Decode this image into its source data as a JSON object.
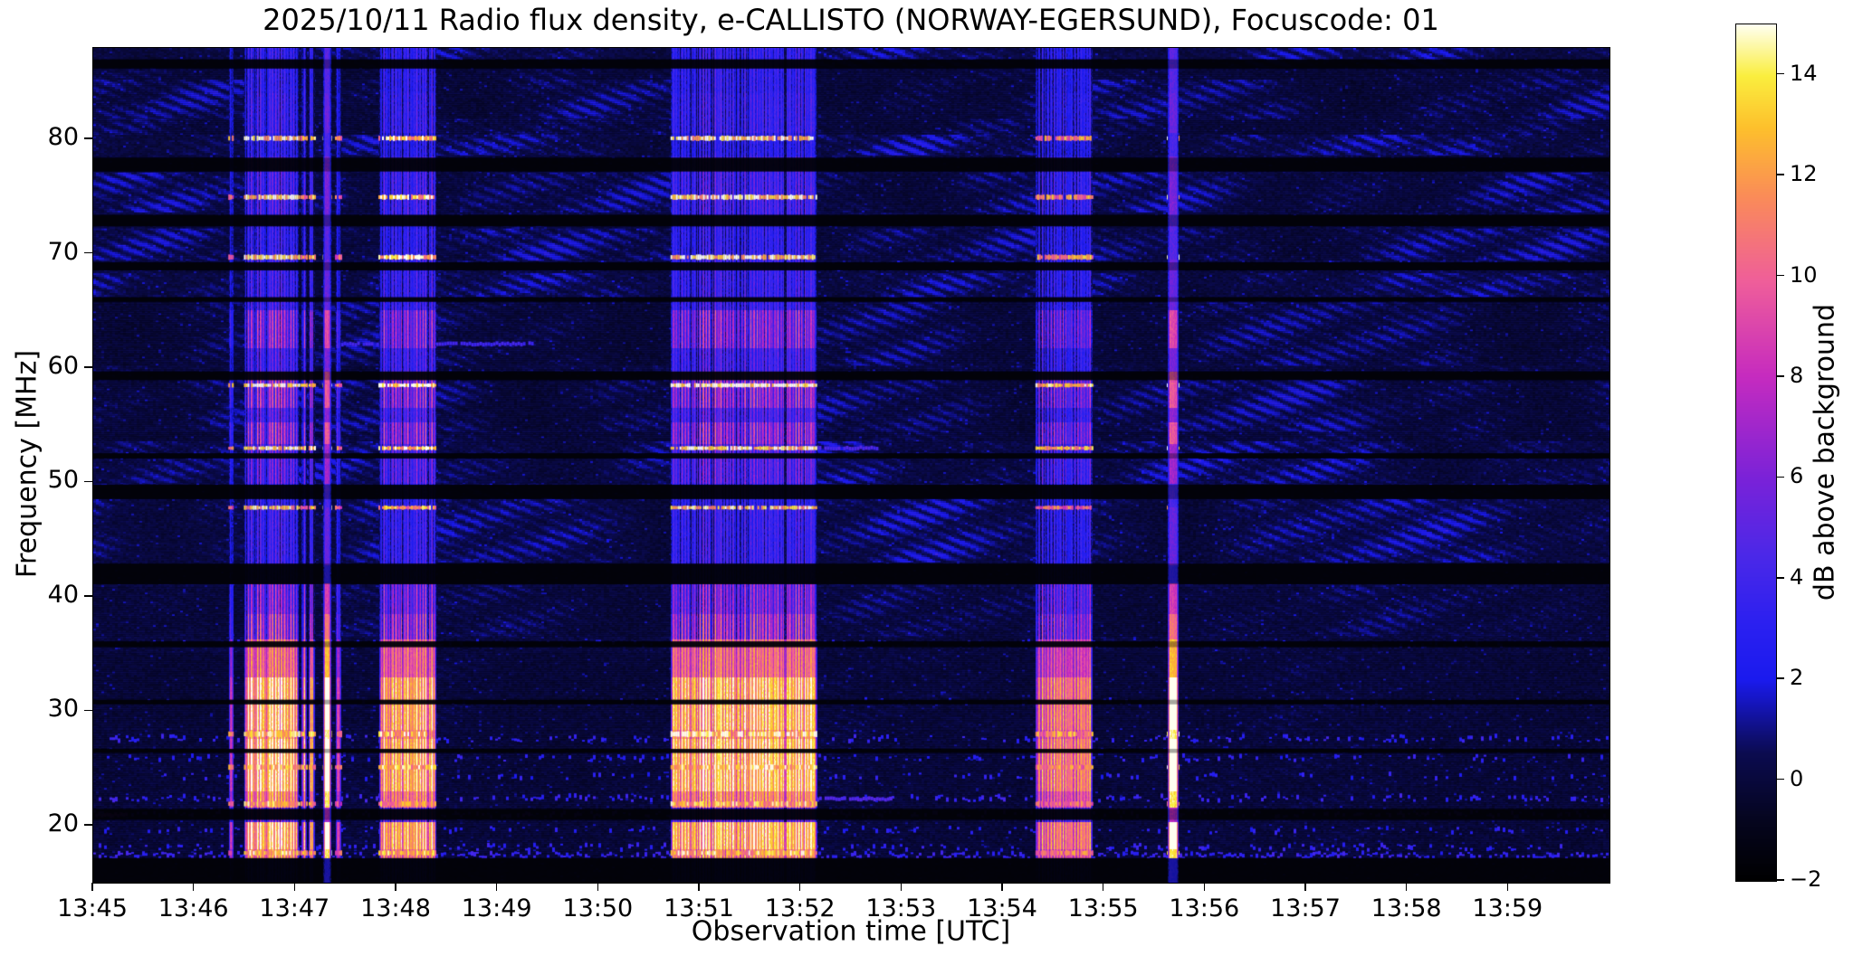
{
  "title": "2025/10/11  Radio flux density, e-CALLISTO (NORWAY-EGERSUND), Focuscode: 01",
  "chart_data": {
    "type": "heatmap",
    "subtype": "radio-spectrogram",
    "title": "2025/10/11  Radio flux density, e-CALLISTO (NORWAY-EGERSUND), Focuscode: 01",
    "xlabel": "Observation time [UTC]",
    "ylabel": "Frequency [MHz]",
    "colorbar_label": "dB above background",
    "x_start_utc": "13:45",
    "x_end_utc": "14:00",
    "x_range_minutes": [
      0,
      15
    ],
    "freq_range_mhz": [
      15,
      88
    ],
    "x_ticks": [
      {
        "label": "13:45",
        "minute": 0
      },
      {
        "label": "13:46",
        "minute": 1
      },
      {
        "label": "13:47",
        "minute": 2
      },
      {
        "label": "13:48",
        "minute": 3
      },
      {
        "label": "13:49",
        "minute": 4
      },
      {
        "label": "13:50",
        "minute": 5
      },
      {
        "label": "13:51",
        "minute": 6
      },
      {
        "label": "13:52",
        "minute": 7
      },
      {
        "label": "13:53",
        "minute": 8
      },
      {
        "label": "13:54",
        "minute": 9
      },
      {
        "label": "13:55",
        "minute": 10
      },
      {
        "label": "13:56",
        "minute": 11
      },
      {
        "label": "13:57",
        "minute": 12
      },
      {
        "label": "13:58",
        "minute": 13
      },
      {
        "label": "13:59",
        "minute": 14
      }
    ],
    "y_ticks": [
      {
        "label": "80",
        "value": 80
      },
      {
        "label": "70",
        "value": 70
      },
      {
        "label": "60",
        "value": 60
      },
      {
        "label": "50",
        "value": 50
      },
      {
        "label": "40",
        "value": 40
      },
      {
        "label": "30",
        "value": 30
      },
      {
        "label": "20",
        "value": 20
      }
    ],
    "colorbar": {
      "vmin": -2,
      "vmax": 15,
      "ticks": [
        {
          "label": "14",
          "value": 14
        },
        {
          "label": "12",
          "value": 12
        },
        {
          "label": "10",
          "value": 10
        },
        {
          "label": "8",
          "value": 8
        },
        {
          "label": "6",
          "value": 6
        },
        {
          "label": "4",
          "value": 4
        },
        {
          "label": "2",
          "value": 2
        },
        {
          "label": "0",
          "value": 0
        },
        {
          "label": "−2",
          "value": -2
        }
      ],
      "anchors": [
        {
          "t": 0.0,
          "c": [
            0,
            0,
            0
          ]
        },
        {
          "t": 0.07,
          "c": [
            5,
            5,
            30
          ]
        },
        {
          "t": 0.15,
          "c": [
            11,
            11,
            80
          ]
        },
        {
          "t": 0.235,
          "c": [
            26,
            26,
            238
          ]
        },
        {
          "t": 0.3,
          "c": [
            43,
            32,
            240
          ]
        },
        {
          "t": 0.38,
          "c": [
            75,
            40,
            232
          ]
        },
        {
          "t": 0.47,
          "c": [
            122,
            34,
            216
          ]
        },
        {
          "t": 0.59,
          "c": [
            198,
            43,
            191
          ]
        },
        {
          "t": 0.7,
          "c": [
            239,
            94,
            154
          ]
        },
        {
          "t": 0.8,
          "c": [
            250,
            140,
            88
          ]
        },
        {
          "t": 0.88,
          "c": [
            253,
            192,
            44
          ]
        },
        {
          "t": 0.94,
          "c": [
            250,
            238,
            62
          ]
        },
        {
          "t": 1.0,
          "c": [
            255,
            255,
            240
          ]
        }
      ]
    },
    "background_bands": [
      {
        "f_hi": 88.0,
        "f_lo": 86.3,
        "level": 2.2
      },
      {
        "f_hi": 86.3,
        "f_lo": 85.2,
        "level": 0.8
      },
      {
        "f_hi": 85.2,
        "f_lo": 81.8,
        "level": 2.4
      },
      {
        "f_hi": 81.8,
        "f_lo": 80.4,
        "level": 1.2
      },
      {
        "f_hi": 80.4,
        "f_lo": 78.6,
        "level": 2.6
      },
      {
        "f_hi": 78.6,
        "f_lo": 77.1,
        "level": 0.7
      },
      {
        "f_hi": 77.1,
        "f_lo": 73.6,
        "level": 2.4
      },
      {
        "f_hi": 73.6,
        "f_lo": 72.2,
        "level": 0.8
      },
      {
        "f_hi": 72.2,
        "f_lo": 69.4,
        "level": 2.6
      },
      {
        "f_hi": 69.4,
        "f_lo": 68.3,
        "level": 0.9
      },
      {
        "f_hi": 68.3,
        "f_lo": 65.9,
        "level": 2.2
      },
      {
        "f_hi": 65.9,
        "f_lo": 60.2,
        "level": 2.0
      },
      {
        "f_hi": 60.2,
        "f_lo": 59.0,
        "level": 0.7
      },
      {
        "f_hi": 59.0,
        "f_lo": 54.5,
        "level": 2.6
      },
      {
        "f_hi": 54.5,
        "f_lo": 53.6,
        "level": 1.0
      },
      {
        "f_hi": 53.6,
        "f_lo": 49.9,
        "level": 2.5
      },
      {
        "f_hi": 49.9,
        "f_lo": 48.7,
        "level": 1.0
      },
      {
        "f_hi": 48.7,
        "f_lo": 43.0,
        "level": 2.4
      },
      {
        "f_hi": 43.0,
        "f_lo": 41.0,
        "level": 0.5
      },
      {
        "f_hi": 41.0,
        "f_lo": 36.5,
        "level": 1.2
      },
      {
        "f_hi": 36.5,
        "f_lo": 35.2,
        "level": 0.5
      },
      {
        "f_hi": 35.2,
        "f_lo": 28.5,
        "level": 0.5
      },
      {
        "f_hi": 28.5,
        "f_lo": 17.2,
        "level": 0.45
      },
      {
        "f_hi": 17.2,
        "f_lo": 15.0,
        "level": 0.15
      }
    ],
    "dark_rows": [
      [
        87.0,
        86.2
      ],
      [
        78.4,
        77.2
      ],
      [
        73.4,
        72.4
      ],
      [
        69.25,
        68.55
      ],
      [
        66.2,
        65.8
      ],
      [
        59.7,
        58.95
      ],
      [
        52.55,
        52.1
      ],
      [
        49.8,
        48.55
      ],
      [
        42.9,
        41.1
      ],
      [
        36.1,
        35.6
      ],
      [
        31.0,
        30.6
      ],
      [
        26.7,
        26.35
      ],
      [
        21.45,
        20.5
      ],
      [
        17.15,
        15.0
      ]
    ],
    "speckle_rows": [
      {
        "f": 35.9,
        "density": 0.15,
        "v": 2.2
      },
      {
        "f": 30.9,
        "density": 0.08,
        "v": 2.0
      },
      {
        "f": 27.6,
        "density": 0.3,
        "v": 2.8
      },
      {
        "f": 25.9,
        "density": 0.25,
        "v": 2.6
      },
      {
        "f": 24.3,
        "density": 0.15,
        "v": 2.4
      },
      {
        "f": 22.4,
        "density": 0.4,
        "v": 3.0
      },
      {
        "f": 21.0,
        "density": 0.45,
        "v": 3.4
      },
      {
        "f": 19.6,
        "density": 0.2,
        "v": 2.4
      },
      {
        "f": 18.1,
        "density": 0.35,
        "v": 2.8
      },
      {
        "f": 17.4,
        "density": 0.65,
        "v": 3.0
      }
    ],
    "segments": [
      {
        "f": 62.2,
        "t": [
          2.45,
          4.35
        ],
        "v": 3.8
      },
      {
        "f": 53.1,
        "t": [
          7.15,
          7.75
        ],
        "v": 4.2
      },
      {
        "f": 22.4,
        "t": [
          7.1,
          7.9
        ],
        "v": 4.5
      },
      {
        "f": 21.0,
        "t": [
          0.02,
          0.32
        ],
        "v": 6.0
      }
    ],
    "rfi_lines": [
      {
        "f": 80.1,
        "v": 13.5,
        "th": 5
      },
      {
        "f": 74.95,
        "v": 13.5,
        "th": 5
      },
      {
        "f": 69.7,
        "v": 13.5,
        "th": 5
      },
      {
        "f": 58.5,
        "v": 15.0,
        "th": 4
      },
      {
        "f": 53.0,
        "v": 14.0,
        "th": 4
      },
      {
        "f": 47.8,
        "v": 12.5,
        "th": 4
      },
      {
        "f": 28.0,
        "v": 13.5,
        "th": 6
      },
      {
        "f": 25.1,
        "v": 13.0,
        "th": 5
      },
      {
        "f": 21.9,
        "v": 12.0,
        "th": 5
      },
      {
        "f": 17.6,
        "v": 12.5,
        "th": 5
      }
    ],
    "burst_profile": [
      {
        "f_hi": 88.0,
        "f_lo": 84.0,
        "v": 4.5
      },
      {
        "f_hi": 84.0,
        "f_lo": 80.5,
        "v": 5.0
      },
      {
        "f_hi": 80.5,
        "f_lo": 78.5,
        "v": 4.0
      },
      {
        "f_hi": 78.5,
        "f_lo": 73.5,
        "v": 5.5
      },
      {
        "f_hi": 73.5,
        "f_lo": 69.5,
        "v": 4.5
      },
      {
        "f_hi": 69.5,
        "f_lo": 65.0,
        "v": 5.0
      },
      {
        "f_hi": 65.0,
        "f_lo": 61.8,
        "v": 8.5
      },
      {
        "f_hi": 61.8,
        "f_lo": 59.7,
        "v": 5.5
      },
      {
        "f_hi": 59.7,
        "f_lo": 56.6,
        "v": 9.0
      },
      {
        "f_hi": 56.6,
        "f_lo": 55.3,
        "v": 6.0
      },
      {
        "f_hi": 55.3,
        "f_lo": 53.3,
        "v": 9.0
      },
      {
        "f_hi": 53.3,
        "f_lo": 49.8,
        "v": 6.5
      },
      {
        "f_hi": 49.8,
        "f_lo": 47.9,
        "v": 4.0
      },
      {
        "f_hi": 47.9,
        "f_lo": 42.8,
        "v": 5.0
      },
      {
        "f_hi": 42.8,
        "f_lo": 41.2,
        "v": 3.0
      },
      {
        "f_hi": 41.2,
        "f_lo": 38.5,
        "v": 8.0
      },
      {
        "f_hi": 38.5,
        "f_lo": 36.2,
        "v": 10.0
      },
      {
        "f_hi": 36.2,
        "f_lo": 33.0,
        "v": 11.5
      },
      {
        "f_hi": 33.0,
        "f_lo": 28.4,
        "v": 14.5
      },
      {
        "f_hi": 28.4,
        "f_lo": 27.6,
        "v": 13.0
      },
      {
        "f_hi": 27.6,
        "f_lo": 23.0,
        "v": 14.8
      },
      {
        "f_hi": 23.0,
        "f_lo": 21.6,
        "v": 12.5
      },
      {
        "f_hi": 21.6,
        "f_lo": 20.3,
        "v": 7.0
      },
      {
        "f_hi": 20.3,
        "f_lo": 18.0,
        "v": 14.5
      },
      {
        "f_hi": 18.0,
        "f_lo": 17.2,
        "v": 12.5
      },
      {
        "f_hi": 17.2,
        "f_lo": 15.0,
        "v": 2.5
      }
    ],
    "bursts": [
      {
        "time_utc": "13:46:21-13:46:23",
        "t": [
          1.345,
          1.375
        ],
        "scale": 0.8,
        "kind": "narrow"
      },
      {
        "time_utc": "13:46:30-13:47:01",
        "t": [
          1.5,
          2.02
        ],
        "scale": 1.0,
        "kind": "broad"
      },
      {
        "time_utc": "13:47:04-13:47:06",
        "t": [
          2.06,
          2.1
        ],
        "scale": 0.85,
        "kind": "narrow"
      },
      {
        "time_utc": "13:47:08-13:47:11",
        "t": [
          2.14,
          2.18
        ],
        "scale": 0.9,
        "kind": "narrow"
      },
      {
        "time_utc": "13:47:17-13:47:20",
        "t": [
          2.28,
          2.34
        ],
        "scale": 1.05,
        "kind": "white"
      },
      {
        "time_utc": "13:47:24-13:47:26",
        "t": [
          2.4,
          2.44
        ],
        "scale": 0.75,
        "kind": "narrow"
      },
      {
        "time_utc": "13:47:50-13:48:23",
        "t": [
          2.83,
          3.38
        ],
        "scale": 0.95,
        "kind": "cluster"
      },
      {
        "time_utc": "13:50:43-13:52:09",
        "t": [
          5.72,
          7.15
        ],
        "scale": 1.0,
        "kind": "cluster"
      },
      {
        "time_utc": "13:54:20-13:54:52",
        "t": [
          9.33,
          9.87
        ],
        "scale": 0.82,
        "kind": "cluster"
      },
      {
        "time_utc": "13:55:38-13:55:43",
        "t": [
          10.63,
          10.72
        ],
        "scale": 1.05,
        "kind": "white"
      }
    ]
  }
}
